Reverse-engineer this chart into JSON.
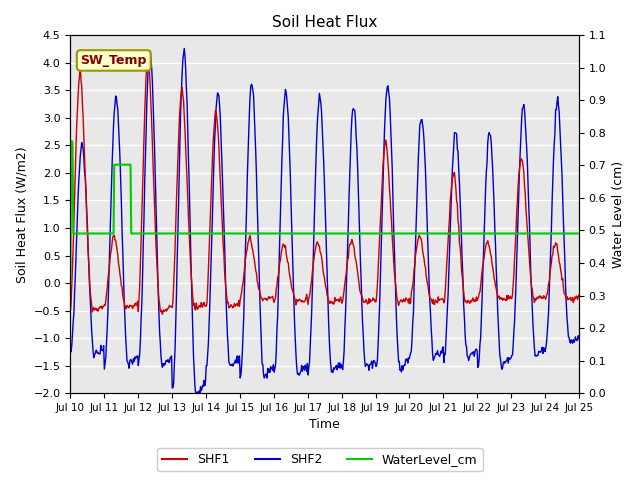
{
  "title": "Soil Heat Flux",
  "xlabel": "Time",
  "ylabel_left": "Soil Heat Flux (W/m2)",
  "ylabel_right": "Water Level (cm)",
  "ylim_left": [
    -2.0,
    4.5
  ],
  "ylim_right": [
    0.0,
    1.1
  ],
  "background_color": "#ffffff",
  "plot_bg_color": "#e8e8e8",
  "grid_color": "#ffffff",
  "shf1_color": "#cc0000",
  "shf2_color": "#0000cc",
  "water_color": "#00cc00",
  "annotation_text": "SW_Temp",
  "annotation_bg": "#ffffcc",
  "annotation_border": "#999900",
  "annotation_text_color": "#800000",
  "legend_items": [
    "SHF1",
    "SHF2",
    "WaterLevel_cm"
  ],
  "days": 15,
  "pts_per_day": 48
}
